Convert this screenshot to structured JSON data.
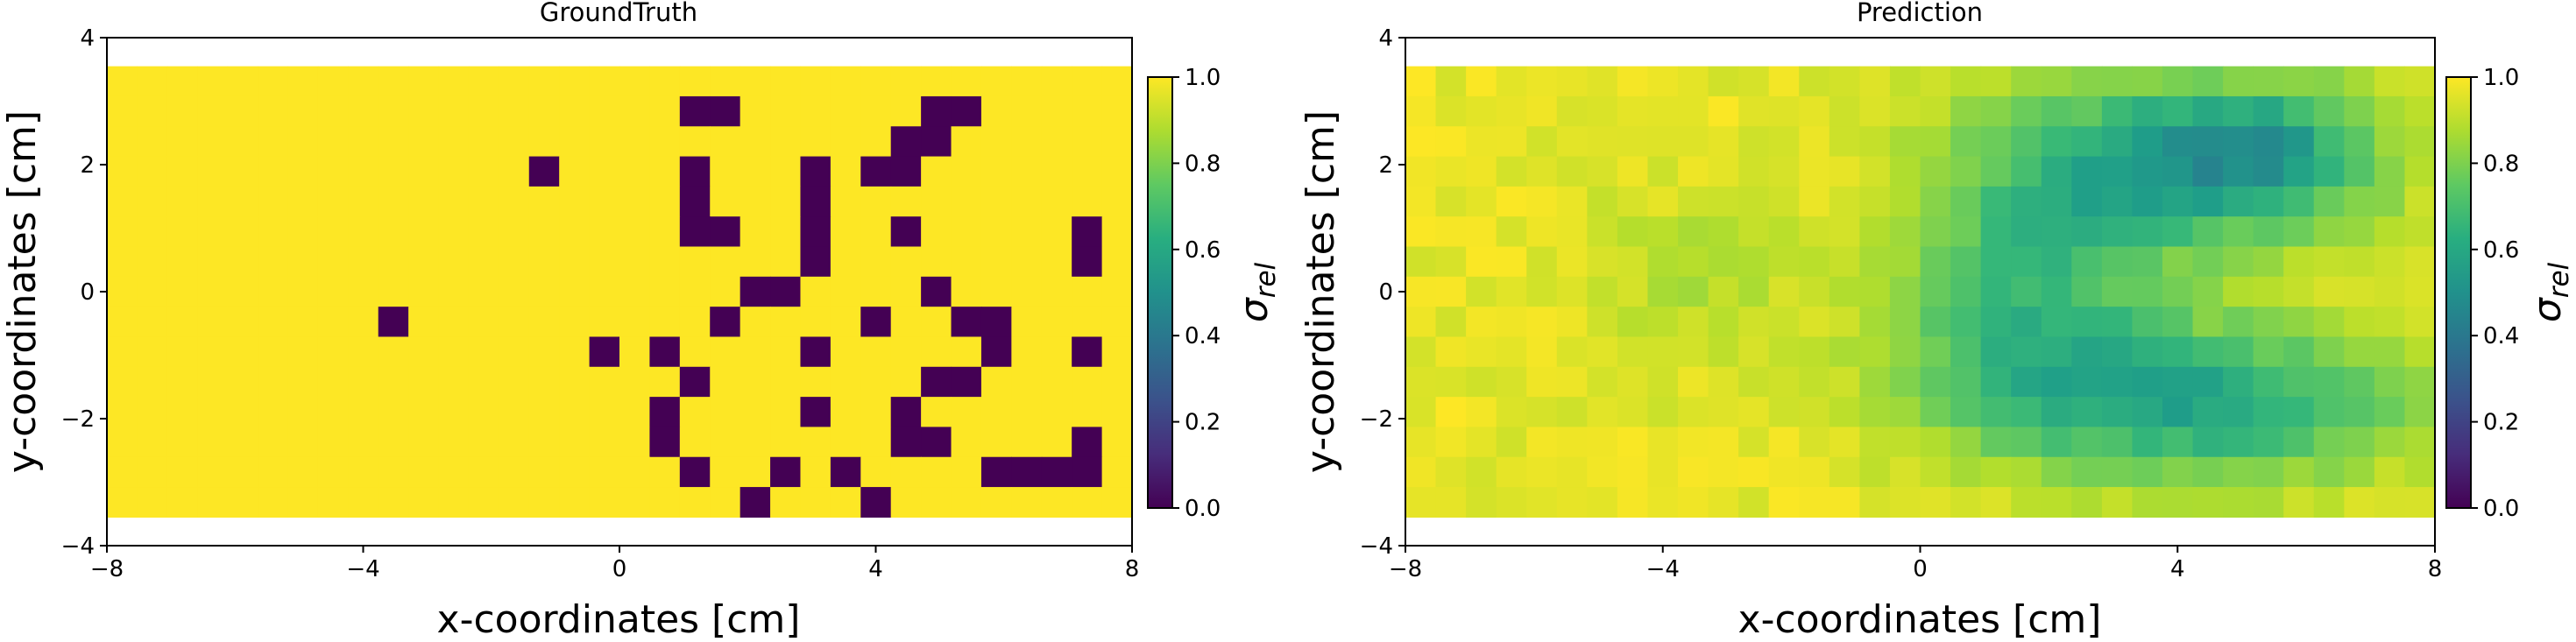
{
  "chart_data": [
    {
      "type": "heatmap",
      "title": "GroundTruth",
      "xlabel": "x-coordinates [cm]",
      "ylabel": "y-coordinates [cm]",
      "xlim": [
        -8,
        8
      ],
      "ylim": [
        -4,
        4
      ],
      "extent": {
        "x": [
          -8,
          8
        ],
        "y": [
          -3.55,
          3.55
        ]
      },
      "grid_size": [
        34,
        15
      ],
      "xticks": [
        "−8",
        "−4",
        "0",
        "4",
        "8"
      ],
      "yticks": [
        "−4",
        "−2",
        "0",
        "2",
        "4"
      ],
      "colorbar": {
        "label": "σrel",
        "range": [
          0,
          1
        ],
        "ticks": [
          "0.0",
          "0.2",
          "0.4",
          "0.6",
          "0.8",
          "1.0"
        ]
      },
      "background_value": 1.0,
      "low_value": 0.0,
      "low_cells": [
        [
          19,
          1
        ],
        [
          20,
          1
        ],
        [
          27,
          1
        ],
        [
          28,
          1
        ],
        [
          26,
          2
        ],
        [
          27,
          2
        ],
        [
          14,
          3
        ],
        [
          19,
          3
        ],
        [
          23,
          3
        ],
        [
          25,
          3
        ],
        [
          26,
          3
        ],
        [
          19,
          4
        ],
        [
          23,
          4
        ],
        [
          19,
          5
        ],
        [
          20,
          5
        ],
        [
          23,
          5
        ],
        [
          26,
          5
        ],
        [
          32,
          5
        ],
        [
          23,
          6
        ],
        [
          32,
          6
        ],
        [
          21,
          7
        ],
        [
          22,
          7
        ],
        [
          27,
          7
        ],
        [
          9,
          8
        ],
        [
          20,
          8
        ],
        [
          25,
          8
        ],
        [
          28,
          8
        ],
        [
          29,
          8
        ],
        [
          16,
          9
        ],
        [
          18,
          9
        ],
        [
          23,
          9
        ],
        [
          29,
          9
        ],
        [
          32,
          9
        ],
        [
          19,
          10
        ],
        [
          27,
          10
        ],
        [
          28,
          10
        ],
        [
          18,
          11
        ],
        [
          23,
          11
        ],
        [
          26,
          11
        ],
        [
          18,
          12
        ],
        [
          26,
          12
        ],
        [
          27,
          12
        ],
        [
          32,
          12
        ],
        [
          19,
          13
        ],
        [
          22,
          13
        ],
        [
          24,
          13
        ],
        [
          29,
          13
        ],
        [
          30,
          13
        ],
        [
          31,
          13
        ],
        [
          32,
          13
        ],
        [
          21,
          14
        ],
        [
          25,
          14
        ]
      ]
    },
    {
      "type": "heatmap",
      "title": "Prediction",
      "xlabel": "x-coordinates [cm]",
      "ylabel": "y-coordinates [cm]",
      "xlim": [
        -8,
        8
      ],
      "ylim": [
        -4,
        4
      ],
      "extent": {
        "x": [
          -8,
          8
        ],
        "y": [
          -3.55,
          3.55
        ]
      },
      "grid_size": [
        34,
        15
      ],
      "xticks": [
        "−8",
        "−4",
        "0",
        "4",
        "8"
      ],
      "yticks": [
        "−4",
        "−2",
        "0",
        "2",
        "4"
      ],
      "colorbar": {
        "label": "σrel",
        "range": [
          0,
          1
        ],
        "ticks": [
          "0.0",
          "0.2",
          "0.4",
          "0.6",
          "0.8",
          "1.0"
        ]
      },
      "low_blobs": [
        {
          "center": [
            4.3,
            2.1
          ],
          "sigma": [
            2.0,
            0.9
          ],
          "depth": 0.45
        },
        {
          "center": [
            5.5,
            2.3
          ],
          "sigma": [
            0.7,
            0.5
          ],
          "depth": 0.12
        },
        {
          "center": [
            4.5,
            -1.8
          ],
          "sigma": [
            2.3,
            0.9
          ],
          "depth": 0.34
        },
        {
          "center": [
            2.0,
            -1.0
          ],
          "sigma": [
            1.6,
            0.9
          ],
          "depth": 0.18
        },
        {
          "center": [
            2.2,
            0.8
          ],
          "sigma": [
            1.4,
            0.8
          ],
          "depth": 0.14
        },
        {
          "center": [
            1.0,
            0.2
          ],
          "sigma": [
            1.2,
            1.8
          ],
          "depth": 0.1
        },
        {
          "center": [
            -3.5,
            0.2
          ],
          "sigma": [
            1.2,
            1.0
          ],
          "depth": 0.08
        }
      ]
    }
  ]
}
